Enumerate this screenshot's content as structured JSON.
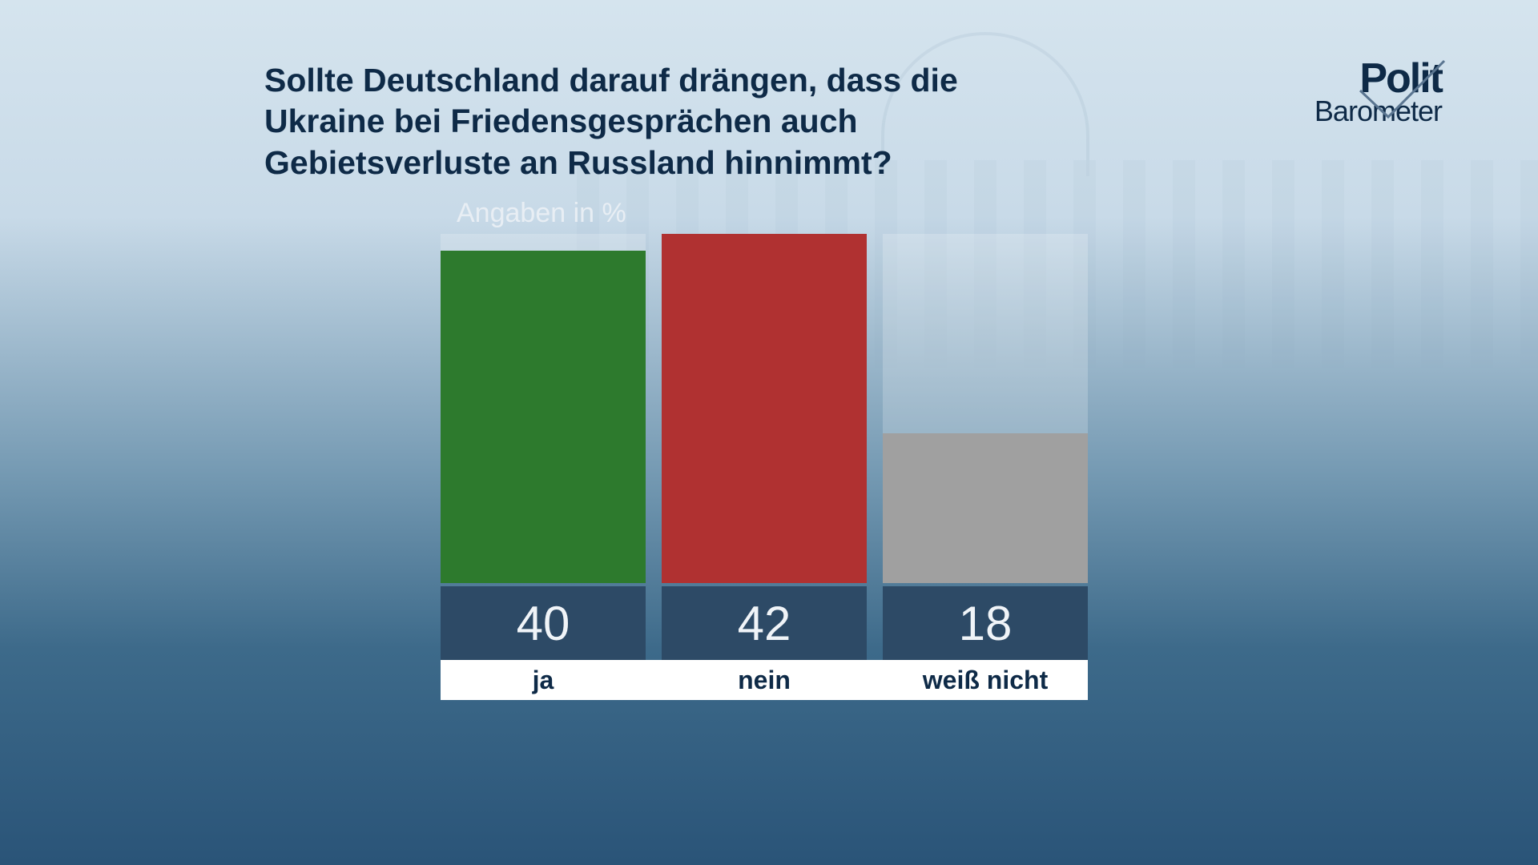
{
  "headline": "Sollte Deutschland darauf drängen, dass die Ukraine bei Friedensgesprächen auch Gebietsverluste an Russland hinnimmt?",
  "subtitle": "Angaben in %",
  "logo": {
    "line1": "Polit",
    "line2": "Barometer"
  },
  "chart": {
    "type": "bar",
    "max_value": 42,
    "value_fontsize": 60,
    "label_fontsize": 32,
    "title_fontsize": 41,
    "bar_slot_bg": "rgba(255,255,255,0.20)",
    "value_box_bg": "#2d4a66",
    "value_text_color": "#f0f4f8",
    "label_strip_bg": "#ffffff",
    "label_text_color": "#0e2a47",
    "headline_color": "#0e2a47",
    "subtitle_color": "#e8eef4",
    "bars": [
      {
        "label": "ja",
        "value": 40,
        "color": "#2d7a2d"
      },
      {
        "label": "nein",
        "value": 42,
        "color": "#b03131"
      },
      {
        "label": "weiß nicht",
        "value": 18,
        "color": "#a0a0a0"
      }
    ]
  }
}
